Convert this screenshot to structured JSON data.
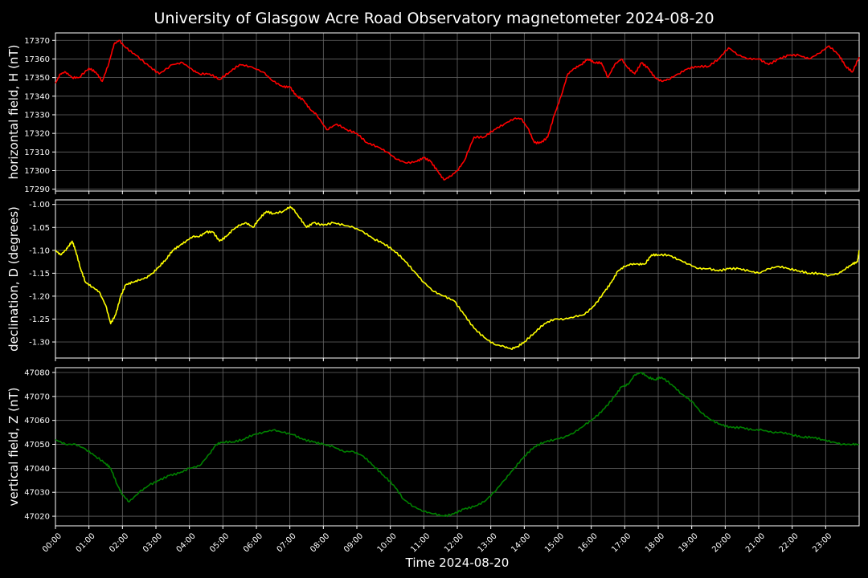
{
  "title": "University of Glasgow Acre Road Observatory magnetometer 2024-08-20",
  "xlabel": "Time 2024-08-20",
  "x_ticks": [
    "00:00",
    "01:00",
    "02:00",
    "03:00",
    "04:00",
    "05:00",
    "06:00",
    "07:00",
    "08:00",
    "09:00",
    "10:00",
    "11:00",
    "12:00",
    "13:00",
    "14:00",
    "15:00",
    "16:00",
    "17:00",
    "18:00",
    "19:00",
    "20:00",
    "21:00",
    "22:00",
    "23:00"
  ],
  "colors": {
    "background": "#000000",
    "axes": "#ffffff",
    "grid": "#666666",
    "H": "#ff0000",
    "D": "#ffff00",
    "Z": "#008000"
  },
  "chart_data": [
    {
      "type": "line",
      "ylabel": "horizontal field, H (nT)",
      "ylim": [
        17289,
        17374
      ],
      "yticks": [
        "17290",
        "17300",
        "17310",
        "17320",
        "17330",
        "17340",
        "17350",
        "17360",
        "17370"
      ],
      "grid": true,
      "x_unit": "hour",
      "xlim": [
        0,
        24
      ],
      "series": [
        {
          "color": "#ff0000",
          "x": [
            0,
            0.15,
            0.3,
            0.5,
            0.7,
            1.0,
            1.2,
            1.4,
            1.6,
            1.75,
            1.9,
            2.1,
            2.4,
            2.8,
            3.1,
            3.5,
            3.8,
            4.1,
            4.3,
            4.6,
            4.9,
            5.2,
            5.5,
            5.8,
            6.2,
            6.5,
            6.8,
            7.0,
            7.2,
            7.4,
            7.6,
            7.8,
            8.1,
            8.4,
            8.7,
            9.0,
            9.3,
            9.6,
            9.9,
            10.2,
            10.5,
            10.8,
            11.0,
            11.2,
            11.4,
            11.6,
            11.8,
            12.0,
            12.2,
            12.5,
            12.8,
            13.1,
            13.4,
            13.7,
            13.9,
            14.1,
            14.3,
            14.5,
            14.7,
            14.9,
            15.1,
            15.3,
            15.5,
            15.7,
            15.9,
            16.1,
            16.3,
            16.5,
            16.7,
            16.9,
            17.1,
            17.3,
            17.5,
            17.7,
            17.9,
            18.1,
            18.3,
            18.6,
            18.9,
            19.2,
            19.5,
            19.8,
            20.1,
            20.4,
            20.7,
            21.0,
            21.3,
            21.6,
            21.9,
            22.2,
            22.5,
            22.8,
            23.1,
            23.4,
            23.6,
            23.8,
            24.0
          ],
          "y": [
            17347,
            17352,
            17353,
            17350,
            17350,
            17355,
            17353,
            17348,
            17358,
            17368,
            17370,
            17366,
            17362,
            17356,
            17352,
            17357,
            17358,
            17354,
            17352,
            17352,
            17349,
            17353,
            17357,
            17356,
            17353,
            17348,
            17345,
            17345,
            17340,
            17338,
            17333,
            17330,
            17322,
            17325,
            17322,
            17320,
            17315,
            17313,
            17310,
            17306,
            17304,
            17305,
            17307,
            17305,
            17300,
            17295,
            17297,
            17300,
            17305,
            17318,
            17318,
            17322,
            17325,
            17328,
            17328,
            17323,
            17315,
            17315,
            17318,
            17330,
            17340,
            17352,
            17355,
            17357,
            17360,
            17358,
            17358,
            17350,
            17357,
            17360,
            17355,
            17352,
            17358,
            17355,
            17350,
            17348,
            17349,
            17352,
            17355,
            17356,
            17356,
            17360,
            17366,
            17362,
            17360,
            17360,
            17357,
            17360,
            17362,
            17362,
            17360,
            17363,
            17367,
            17362,
            17356,
            17353,
            17361
          ]
        }
      ]
    },
    {
      "type": "line",
      "ylabel": "declination, D (degrees)",
      "ylim": [
        -1.335,
        -0.99
      ],
      "yticks": [
        "-1.00",
        "-1.05",
        "-1.10",
        "-1.15",
        "-1.20",
        "-1.25",
        "-1.30"
      ],
      "grid": true,
      "x_unit": "hour",
      "xlim": [
        0,
        24
      ],
      "series": [
        {
          "color": "#ffff00",
          "x": [
            0,
            0.15,
            0.3,
            0.4,
            0.5,
            0.6,
            0.75,
            0.9,
            1.1,
            1.3,
            1.5,
            1.65,
            1.8,
            1.95,
            2.1,
            2.3,
            2.5,
            2.7,
            2.9,
            3.1,
            3.3,
            3.5,
            3.7,
            3.9,
            4.1,
            4.3,
            4.5,
            4.7,
            4.9,
            5.1,
            5.3,
            5.5,
            5.7,
            5.9,
            6.1,
            6.3,
            6.5,
            6.8,
            7.0,
            7.1,
            7.3,
            7.5,
            7.7,
            8.0,
            8.3,
            8.6,
            8.9,
            9.2,
            9.5,
            9.8,
            10.1,
            10.4,
            10.7,
            11.0,
            11.3,
            11.6,
            11.9,
            12.2,
            12.5,
            12.8,
            13.1,
            13.4,
            13.6,
            13.8,
            14.0,
            14.3,
            14.6,
            14.9,
            15.2,
            15.5,
            15.8,
            16.1,
            16.4,
            16.6,
            16.8,
            17.0,
            17.2,
            17.4,
            17.6,
            17.8,
            18.0,
            18.3,
            18.6,
            18.9,
            19.2,
            19.5,
            19.8,
            20.1,
            20.4,
            20.7,
            21.0,
            21.3,
            21.6,
            21.9,
            22.2,
            22.5,
            22.8,
            23.1,
            23.4,
            23.6,
            23.8,
            23.95,
            24.0
          ],
          "y": [
            -1.1,
            -1.11,
            -1.1,
            -1.09,
            -1.08,
            -1.1,
            -1.14,
            -1.17,
            -1.18,
            -1.19,
            -1.22,
            -1.26,
            -1.24,
            -1.2,
            -1.175,
            -1.17,
            -1.165,
            -1.16,
            -1.15,
            -1.135,
            -1.12,
            -1.1,
            -1.09,
            -1.08,
            -1.07,
            -1.07,
            -1.06,
            -1.06,
            -1.08,
            -1.07,
            -1.055,
            -1.045,
            -1.04,
            -1.05,
            -1.03,
            -1.015,
            -1.02,
            -1.015,
            -1.005,
            -1.01,
            -1.03,
            -1.05,
            -1.04,
            -1.045,
            -1.04,
            -1.045,
            -1.05,
            -1.06,
            -1.075,
            -1.085,
            -1.1,
            -1.12,
            -1.145,
            -1.17,
            -1.19,
            -1.2,
            -1.21,
            -1.24,
            -1.27,
            -1.29,
            -1.305,
            -1.31,
            -1.315,
            -1.31,
            -1.3,
            -1.28,
            -1.26,
            -1.25,
            -1.25,
            -1.245,
            -1.24,
            -1.22,
            -1.19,
            -1.17,
            -1.145,
            -1.135,
            -1.13,
            -1.13,
            -1.13,
            -1.11,
            -1.11,
            -1.11,
            -1.12,
            -1.13,
            -1.14,
            -1.14,
            -1.145,
            -1.14,
            -1.14,
            -1.145,
            -1.15,
            -1.14,
            -1.135,
            -1.14,
            -1.145,
            -1.15,
            -1.15,
            -1.155,
            -1.15,
            -1.14,
            -1.13,
            -1.125,
            -1.1
          ]
        }
      ]
    },
    {
      "type": "line",
      "ylabel": "vertical field, Z (nT)",
      "ylim": [
        47016,
        47082
      ],
      "yticks": [
        "47020",
        "47030",
        "47040",
        "47050",
        "47060",
        "47070",
        "47080"
      ],
      "grid": true,
      "x_unit": "hour",
      "xlim": [
        0,
        24
      ],
      "series": [
        {
          "color": "#008000",
          "x": [
            0,
            0.3,
            0.6,
            0.9,
            1.2,
            1.5,
            1.65,
            1.85,
            2.0,
            2.2,
            2.5,
            2.8,
            3.1,
            3.4,
            3.7,
            4.0,
            4.3,
            4.6,
            4.8,
            5.0,
            5.3,
            5.6,
            5.9,
            6.2,
            6.5,
            6.8,
            7.1,
            7.4,
            7.7,
            8.0,
            8.3,
            8.6,
            8.9,
            9.2,
            9.5,
            9.8,
            10.1,
            10.4,
            10.7,
            11.0,
            11.3,
            11.6,
            11.9,
            12.2,
            12.5,
            12.8,
            13.1,
            13.4,
            13.7,
            14.0,
            14.3,
            14.6,
            14.9,
            15.2,
            15.5,
            15.8,
            16.1,
            16.4,
            16.7,
            16.9,
            17.1,
            17.3,
            17.5,
            17.7,
            17.9,
            18.1,
            18.4,
            18.7,
            19.0,
            19.3,
            19.6,
            19.9,
            20.2,
            20.5,
            20.8,
            21.1,
            21.4,
            21.7,
            22.0,
            22.3,
            22.6,
            22.9,
            23.2,
            23.5,
            23.8,
            24.0
          ],
          "y": [
            47052,
            47050,
            47050,
            47048,
            47045,
            47042,
            47040,
            47033,
            47029,
            47026,
            47030,
            47033,
            47035,
            47037,
            47038,
            47040,
            47041,
            47046,
            47050,
            47051,
            47051,
            47052,
            47054,
            47055,
            47056,
            47055,
            47054,
            47052,
            47051,
            47050,
            47049,
            47047,
            47047,
            47045,
            47041,
            47037,
            47033,
            47027,
            47024,
            47022,
            47021,
            47020,
            47021,
            47023,
            47024,
            47026,
            47030,
            47035,
            47040,
            47045,
            47049,
            47051,
            47052,
            47053,
            47055,
            47058,
            47061,
            47065,
            47070,
            47074,
            47075,
            47079,
            47080,
            47078,
            47077,
            47078,
            47075,
            47071,
            47068,
            47063,
            47060,
            47058,
            47057,
            47057,
            47056,
            47056,
            47055,
            47055,
            47054,
            47053,
            47053,
            47052,
            47051,
            47050,
            47050,
            47050
          ]
        }
      ]
    }
  ]
}
